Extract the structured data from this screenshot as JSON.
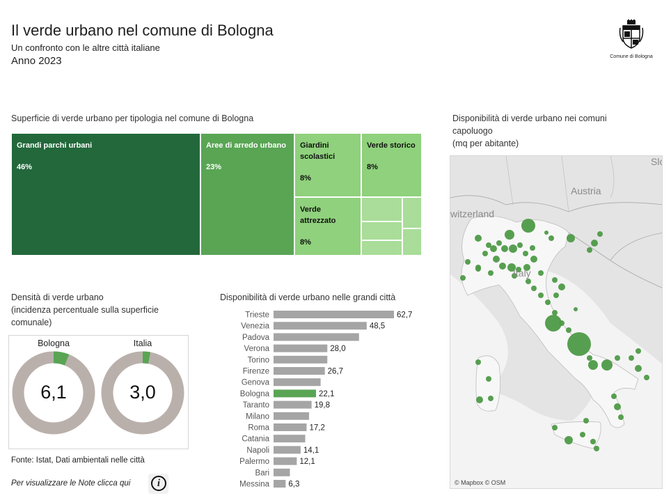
{
  "header": {
    "title": "Il verde urbano nel comune di Bologna",
    "subtitle": "Un confronto con le altre città italiane",
    "year": "Anno 2023",
    "logo_text": "Comune di Bologna"
  },
  "treemap": {
    "title": "Superficie di verde urbano per tipologia nel comune di Bologna",
    "cells": [
      {
        "label": "Grandi parchi urbani",
        "value": "46%",
        "color": "#22683b"
      },
      {
        "label": "Aree di  arredo urbano",
        "value": "23%",
        "color": "#59a554"
      },
      {
        "label": "Giardini scolastici",
        "value": "8%",
        "color": "#8fd17c"
      },
      {
        "label": "Verde storico",
        "value": "8%",
        "color": "#8fd17c"
      },
      {
        "label": "Verde attrezzato",
        "value": "8%",
        "color": "#8fd17c"
      }
    ],
    "small_cell_color": "#a9dd99"
  },
  "density": {
    "title_line1": "Densità di verde urbano",
    "title_line2": "(incidenza percentuale sulla superficie",
    "title_line3": "comunale)",
    "items": [
      {
        "label": "Bologna",
        "value_text": "6,1",
        "value": 6.1
      },
      {
        "label": "Italia",
        "value_text": "3,0",
        "value": 3.0
      }
    ],
    "ring_color": "#bab0ab",
    "fill_color": "#59a554"
  },
  "chart_data": {
    "type": "bar",
    "title": "Disponibilità di verde urbano nelle grandi città",
    "orientation": "horizontal",
    "categories": [
      "Trieste",
      "Venezia",
      "Padova",
      "Verona",
      "Torino",
      "Firenze",
      "Genova",
      "Bologna",
      "Taranto",
      "Milano",
      "Roma",
      "Catania",
      "Napoli",
      "Palermo",
      "Bari",
      "Messina"
    ],
    "values": [
      62.7,
      48.5,
      44.5,
      28.0,
      28.0,
      26.7,
      24.5,
      22.1,
      19.8,
      18.5,
      17.2,
      16.5,
      14.1,
      12.1,
      8.5,
      6.3
    ],
    "data_labels": [
      "62,7",
      "48,5",
      "",
      "28,0",
      "",
      "26,7",
      "",
      "22,1",
      "19,8",
      "",
      "17,2",
      "",
      "14,1",
      "12,1",
      "",
      "6,3"
    ],
    "highlight": "Bologna",
    "bar_color": "#a5a5a5",
    "highlight_color": "#59a554",
    "xlim": [
      0,
      65
    ]
  },
  "map": {
    "title_line1": "Disponibilità di verde urbano nei comuni",
    "title_line2": "capoluogo",
    "title_line3": "(mq per abitante)",
    "labels": {
      "austria": "Austria",
      "switzerland": "witzerland",
      "italy": "Italy",
      "slovenia": "Slo"
    },
    "attribution": "© Mapbox © OSM",
    "dot_color": "#4e9a47"
  },
  "footer": {
    "source": "Fonte: Istat, Dati ambientali nelle città",
    "notes": "Per visualizzare le Note clicca qui",
    "info_icon": "i"
  }
}
